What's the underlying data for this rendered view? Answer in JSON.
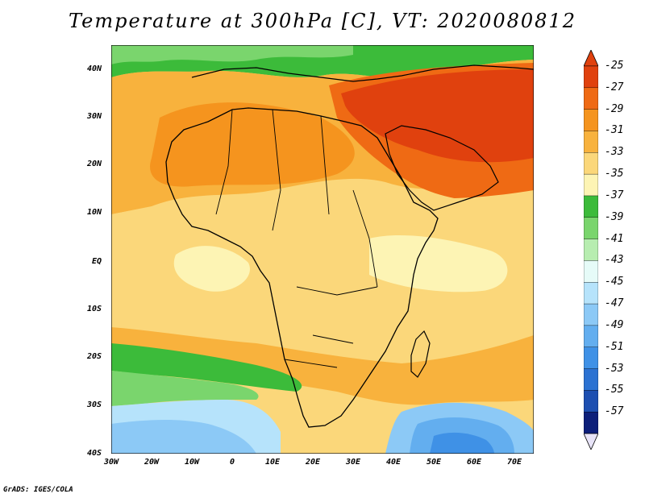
{
  "title": "Temperature at 300hPa [C], VT: 2020080812",
  "map": {
    "lat_labels": [
      "40N",
      "30N",
      "20N",
      "10N",
      "EQ",
      "10S",
      "20S",
      "30S",
      "40S"
    ],
    "lon_labels": [
      "30W",
      "20W",
      "10W",
      "0",
      "10E",
      "20E",
      "30E",
      "40E",
      "50E",
      "60E",
      "70E"
    ],
    "extent": {
      "lon_min": -30,
      "lon_max": 75,
      "lat_min": -40,
      "lat_max": 45
    }
  },
  "colorbar": {
    "labels": [
      "-25",
      "-27",
      "-29",
      "-31",
      "-33",
      "-35",
      "-37",
      "-39",
      "-41",
      "-43",
      "-45",
      "-47",
      "-49",
      "-51",
      "-53",
      "-55",
      "-57"
    ],
    "colors": [
      "#e0410e",
      "#ef6a14",
      "#f5941e",
      "#f8b23d",
      "#fbd77a",
      "#fdf4b4",
      "#3cbb3a",
      "#7ad56d",
      "#b7edb0",
      "#e6fbf8",
      "#b6e3fb",
      "#8cc9f6",
      "#63aeef",
      "#3f91e6",
      "#2b72d2",
      "#1d4fb1",
      "#0d1f7a"
    ],
    "top_color": "#e0410e",
    "bottom_color": "#e8e4f8"
  },
  "credit": "GrADS: IGES/COLA"
}
